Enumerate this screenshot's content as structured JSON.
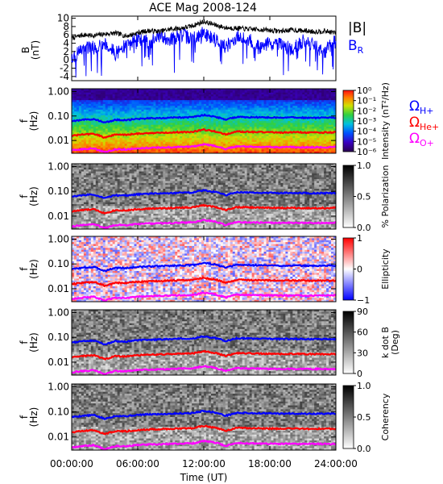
{
  "title": "ACE Mag 2008-124",
  "time_axis": {
    "label": "Time (UT)",
    "ticks": [
      "00:00:00",
      "06:00:00",
      "12:00:00",
      "18:00:00",
      "24:00:00"
    ],
    "range_hours": [
      0,
      24
    ]
  },
  "colors": {
    "btotal": "#000000",
    "br": "#0000ff",
    "omega_h": "#0000ff",
    "omega_he": "#ff0000",
    "omega_o": "#ff00ff"
  },
  "legend": {
    "btotal_label": "|B|",
    "br_label": "B",
    "br_sub": "R",
    "omega_h_sub": "H+",
    "omega_he_sub": "He+",
    "omega_o_sub": "O+",
    "omega_symbol": "Ω"
  },
  "chart_data": [
    {
      "type": "line",
      "panel": "magnetic-field",
      "ylabel": "B",
      "yunit": "(nT)",
      "ylim": [
        -5,
        10.5
      ],
      "yticks": [
        "10",
        "8",
        "6",
        "4",
        "2",
        "0",
        "-2",
        "-4"
      ],
      "x_hours": [
        0,
        1,
        2,
        3,
        4,
        5,
        6,
        7,
        8,
        9,
        10,
        11,
        12,
        13,
        14,
        15,
        16,
        17,
        18,
        19,
        20,
        21,
        22,
        23,
        24
      ],
      "series": [
        {
          "name": "|B|",
          "values": [
            5.2,
            6.0,
            5.8,
            6.2,
            6.4,
            5.7,
            6.5,
            7.0,
            6.8,
            7.4,
            7.6,
            8.2,
            9.2,
            8.4,
            7.7,
            7.6,
            7.4,
            7.3,
            7.1,
            6.9,
            7.2,
            7.0,
            6.8,
            6.9,
            6.5
          ]
        },
        {
          "name": "B_R",
          "values": [
            0.5,
            2.5,
            3.0,
            4.0,
            1.5,
            3.5,
            5.0,
            4.2,
            5.6,
            5.0,
            6.0,
            5.0,
            6.4,
            5.0,
            3.0,
            5.5,
            5.0,
            3.0,
            4.0,
            3.5,
            2.5,
            4.5,
            3.5,
            2.0,
            4.5
          ]
        }
      ]
    },
    {
      "type": "heatmap",
      "panel": "intensity",
      "ylabel": "f",
      "yunit": "(Hz)",
      "yticks": [
        "1.00",
        "0.10",
        "0.01"
      ],
      "ylim_hz": [
        0.003,
        1.3
      ],
      "colorbar_label": "Intensity (nT²/Hz)",
      "colorbar_ticks": [
        "10⁰",
        "10⁻¹",
        "10⁻²",
        "10⁻³",
        "10⁻⁴",
        "10⁻⁵",
        "10⁻⁶"
      ]
    },
    {
      "type": "heatmap",
      "panel": "polarization",
      "ylabel": "f",
      "yunit": "(Hz)",
      "yticks": [
        "1.00",
        "0.10",
        "0.01"
      ],
      "colorbar_label": "% Polarization",
      "colorbar_ticks": [
        "1.0",
        "0.5",
        "0.0"
      ]
    },
    {
      "type": "heatmap",
      "panel": "ellipticity",
      "ylabel": "f",
      "yunit": "(Hz)",
      "yticks": [
        "1.00",
        "0.10",
        "0.01"
      ],
      "colorbar_label": "Ellipticity",
      "colorbar_ticks": [
        "1",
        "0",
        "−1"
      ]
    },
    {
      "type": "heatmap",
      "panel": "k-dot-b",
      "ylabel": "f",
      "yunit": "(Hz)",
      "yticks": [
        "1.00",
        "0.10",
        "0.01"
      ],
      "colorbar_label": "k dot B",
      "colorbar_unit": "(Deg)",
      "colorbar_ticks": [
        "90",
        "60",
        "30",
        "0"
      ]
    },
    {
      "type": "heatmap",
      "panel": "coherency",
      "ylabel": "f",
      "yunit": "(Hz)",
      "yticks": [
        "1.00",
        "0.10",
        "0.01"
      ],
      "colorbar_label": "Coherency",
      "colorbar_ticks": [
        "1.0",
        "0.5",
        "0.0"
      ]
    },
    {
      "type": "line",
      "panel": "gyrofrequencies",
      "x_hours": [
        0,
        1,
        2,
        3,
        4,
        5,
        6,
        7,
        8,
        9,
        10,
        11,
        12,
        13,
        14,
        15,
        16,
        17,
        18,
        19,
        20,
        21,
        22,
        23,
        24
      ],
      "series": [
        {
          "name": "ΩH+",
          "values_hz": [
            0.062,
            0.07,
            0.075,
            0.052,
            0.07,
            0.068,
            0.076,
            0.08,
            0.082,
            0.085,
            0.088,
            0.09,
            0.11,
            0.095,
            0.07,
            0.092,
            0.09,
            0.088,
            0.087,
            0.085,
            0.087,
            0.085,
            0.084,
            0.085,
            0.086
          ]
        },
        {
          "name": "ΩHe+",
          "values_hz": [
            0.0155,
            0.0175,
            0.0188,
            0.013,
            0.0175,
            0.017,
            0.019,
            0.02,
            0.0205,
            0.0212,
            0.022,
            0.0225,
            0.0275,
            0.0238,
            0.0175,
            0.023,
            0.0225,
            0.022,
            0.0218,
            0.0212,
            0.0218,
            0.0212,
            0.021,
            0.0212,
            0.0215
          ]
        },
        {
          "name": "ΩO+",
          "values_hz": [
            0.0039,
            0.0044,
            0.0047,
            0.0033,
            0.0044,
            0.0043,
            0.0048,
            0.005,
            0.0051,
            0.0053,
            0.0055,
            0.0056,
            0.0069,
            0.006,
            0.0044,
            0.0058,
            0.0056,
            0.0055,
            0.0054,
            0.0053,
            0.0054,
            0.0053,
            0.0053,
            0.0053,
            0.0054
          ]
        }
      ]
    }
  ]
}
